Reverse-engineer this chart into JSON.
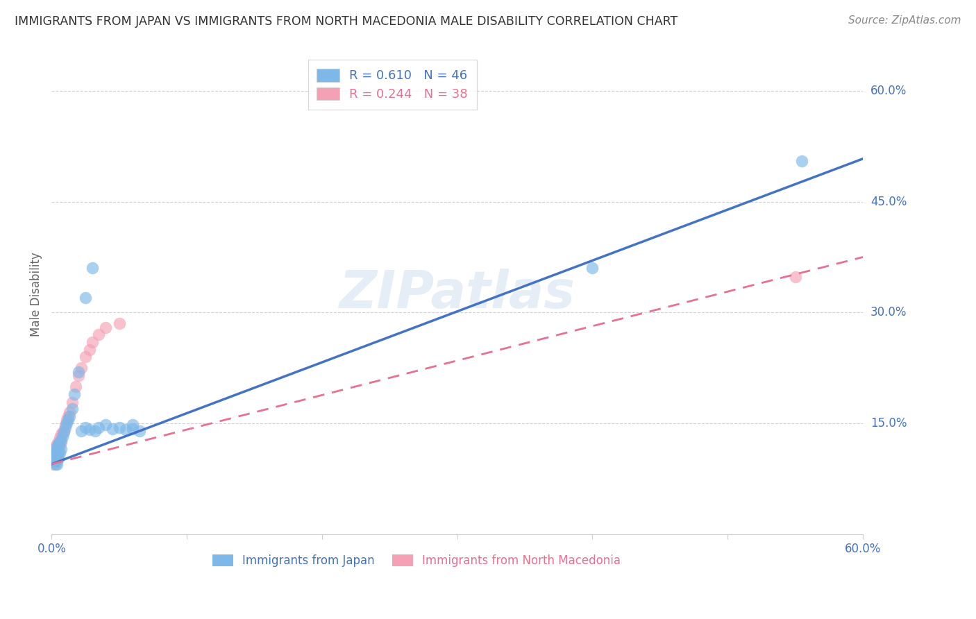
{
  "title": "IMMIGRANTS FROM JAPAN VS IMMIGRANTS FROM NORTH MACEDONIA MALE DISABILITY CORRELATION CHART",
  "source": "Source: ZipAtlas.com",
  "ylabel": "Male Disability",
  "yticks_positions": [
    0.15,
    0.3,
    0.45,
    0.6
  ],
  "ytick_labels": [
    "15.0%",
    "30.0%",
    "45.0%",
    "60.0%"
  ],
  "xlim": [
    0.0,
    0.6
  ],
  "ylim": [
    0.0,
    0.65
  ],
  "japan_R": 0.61,
  "japan_N": 46,
  "macedonia_R": 0.244,
  "macedonia_N": 38,
  "japan_color": "#7DB8E8",
  "macedonia_color": "#F4A0B5",
  "japan_line_color": "#4472C4",
  "macedonia_line_color": "#E87090",
  "watermark": "ZIPatlas",
  "legend_japan_label": "Immigrants from Japan",
  "legend_macedonia_label": "Immigrants from North Macedonia",
  "japan_scatter_x": [
    0.001,
    0.001,
    0.001,
    0.002,
    0.002,
    0.002,
    0.002,
    0.003,
    0.003,
    0.003,
    0.003,
    0.004,
    0.004,
    0.004,
    0.005,
    0.005,
    0.005,
    0.006,
    0.006,
    0.007,
    0.007,
    0.008,
    0.009,
    0.01,
    0.011,
    0.012,
    0.013,
    0.015,
    0.017,
    0.02,
    0.022,
    0.025,
    0.028,
    0.032,
    0.035,
    0.04,
    0.045,
    0.05,
    0.055,
    0.06,
    0.06,
    0.065,
    0.025,
    0.03,
    0.4,
    0.555
  ],
  "japan_scatter_y": [
    0.11,
    0.108,
    0.103,
    0.112,
    0.105,
    0.1,
    0.098,
    0.115,
    0.108,
    0.1,
    0.095,
    0.118,
    0.108,
    0.095,
    0.122,
    0.112,
    0.102,
    0.125,
    0.11,
    0.128,
    0.115,
    0.132,
    0.138,
    0.145,
    0.15,
    0.155,
    0.16,
    0.17,
    0.19,
    0.22,
    0.14,
    0.145,
    0.142,
    0.14,
    0.145,
    0.148,
    0.143,
    0.145,
    0.142,
    0.148,
    0.143,
    0.14,
    0.32,
    0.36,
    0.36,
    0.505
  ],
  "macedonia_scatter_x": [
    0.001,
    0.001,
    0.001,
    0.001,
    0.002,
    0.002,
    0.002,
    0.002,
    0.003,
    0.003,
    0.003,
    0.003,
    0.004,
    0.004,
    0.005,
    0.005,
    0.005,
    0.006,
    0.006,
    0.007,
    0.007,
    0.008,
    0.009,
    0.01,
    0.011,
    0.012,
    0.013,
    0.015,
    0.018,
    0.02,
    0.022,
    0.025,
    0.028,
    0.03,
    0.035,
    0.04,
    0.05,
    0.55
  ],
  "macedonia_scatter_y": [
    0.112,
    0.106,
    0.1,
    0.095,
    0.115,
    0.108,
    0.102,
    0.098,
    0.118,
    0.112,
    0.105,
    0.098,
    0.122,
    0.11,
    0.125,
    0.118,
    0.108,
    0.13,
    0.12,
    0.135,
    0.125,
    0.138,
    0.14,
    0.148,
    0.155,
    0.16,
    0.165,
    0.178,
    0.2,
    0.215,
    0.225,
    0.24,
    0.25,
    0.26,
    0.27,
    0.28,
    0.285,
    0.348
  ],
  "japan_line_x": [
    0.0,
    0.6
  ],
  "japan_line_y": [
    0.095,
    0.508
  ],
  "macedonia_line_x": [
    0.0,
    0.6
  ],
  "macedonia_line_y": [
    0.095,
    0.375
  ]
}
